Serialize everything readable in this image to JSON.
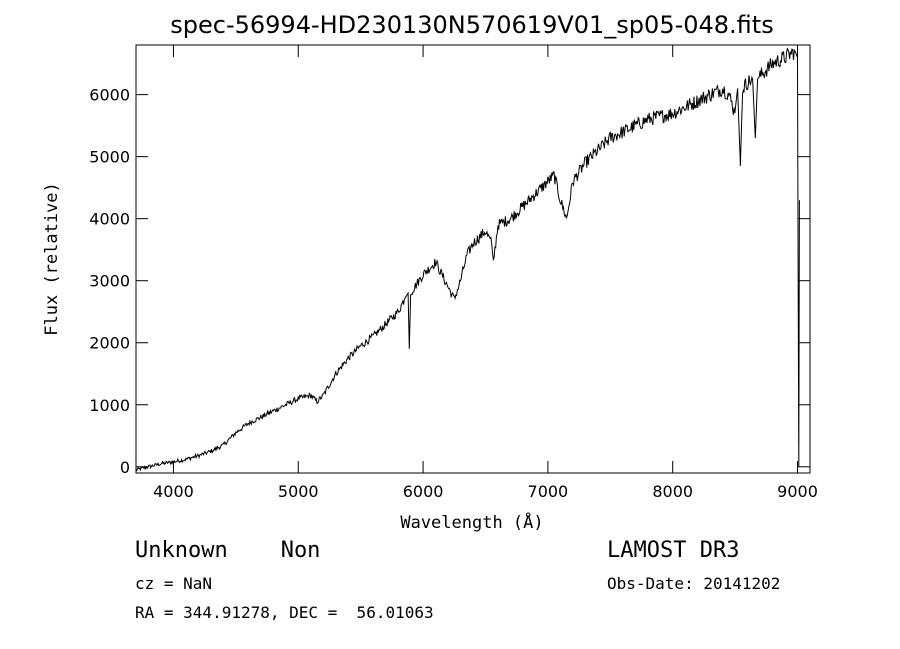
{
  "chart_data": {
    "type": "line",
    "title": "spec-56994-HD230130N570619V01_sp05-048.fits",
    "xlabel": "Wavelength (Å)",
    "ylabel": "Flux (relative)",
    "xlim": [
      3700,
      9100
    ],
    "ylim": [
      -100,
      6800
    ],
    "xticks": [
      4000,
      5000,
      6000,
      7000,
      8000,
      9000
    ],
    "yticks": [
      0,
      1000,
      2000,
      3000,
      4000,
      5000,
      6000
    ],
    "series": [
      {
        "name": "spectrum",
        "x": [
          3700,
          3800,
          3900,
          4000,
          4100,
          4200,
          4300,
          4400,
          4500,
          4600,
          4700,
          4800,
          4900,
          5000,
          5100,
          5150,
          5200,
          5300,
          5400,
          5500,
          5600,
          5700,
          5800,
          5850,
          5880,
          5890,
          5900,
          5950,
          6000,
          6100,
          6150,
          6200,
          6250,
          6300,
          6350,
          6400,
          6500,
          6550,
          6563,
          6600,
          6700,
          6800,
          6900,
          7000,
          7050,
          7100,
          7150,
          7200,
          7300,
          7400,
          7500,
          7600,
          7700,
          7800,
          7900,
          8000,
          8100,
          8200,
          8300,
          8400,
          8450,
          8498,
          8520,
          8542,
          8560,
          8600,
          8640,
          8662,
          8680,
          8700,
          8800,
          8900,
          8980,
          9000,
          9010,
          9015
        ],
        "y": [
          -50,
          0,
          50,
          80,
          120,
          180,
          250,
          350,
          550,
          700,
          800,
          900,
          1000,
          1100,
          1150,
          1050,
          1150,
          1500,
          1750,
          1950,
          2100,
          2300,
          2500,
          2700,
          2800,
          1900,
          2800,
          2950,
          3100,
          3300,
          3100,
          2900,
          2700,
          3000,
          3400,
          3600,
          3800,
          3600,
          3300,
          3900,
          4000,
          4200,
          4400,
          4600,
          4700,
          4300,
          4000,
          4600,
          4900,
          5100,
          5300,
          5400,
          5500,
          5600,
          5650,
          5700,
          5800,
          5900,
          6000,
          6100,
          6000,
          5700,
          6100,
          4850,
          6100,
          6200,
          6250,
          5300,
          6250,
          6300,
          6500,
          6600,
          6700,
          6600,
          0,
          4300
        ]
      }
    ]
  },
  "info": {
    "object": "Unknown    Non",
    "cz": "cz = NaN",
    "radec": "RA = 344.91278, DEC =  56.01063",
    "survey": "LAMOST DR3",
    "obsdate": "Obs-Date: 20141202"
  },
  "colors": {
    "line": "#000000",
    "axis": "#000000",
    "background": "#ffffff"
  }
}
